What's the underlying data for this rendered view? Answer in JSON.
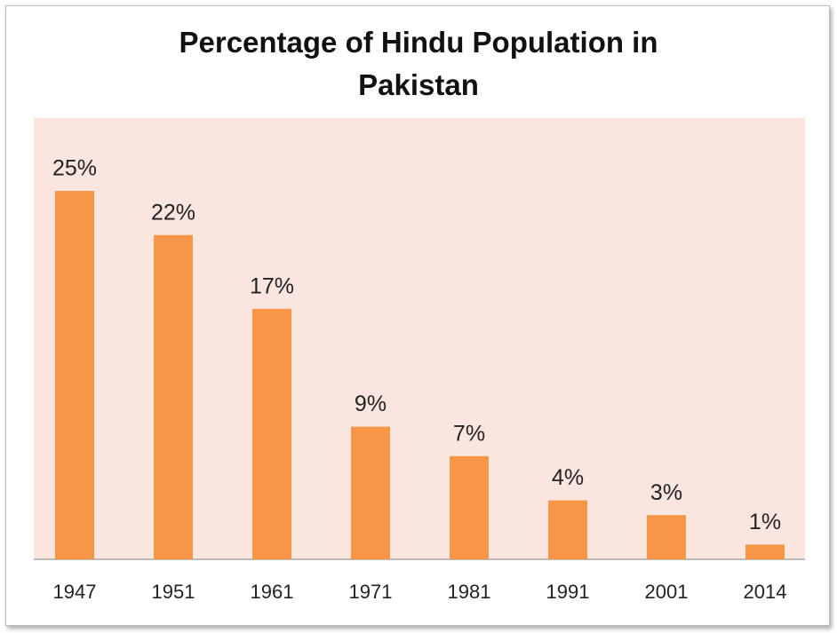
{
  "chart_data": {
    "type": "bar",
    "title": "Percentage of Hindu Population in Pakistan",
    "categories": [
      "1947",
      "1951",
      "1961",
      "1971",
      "1981",
      "1991",
      "2001",
      "2014"
    ],
    "values": [
      25,
      22,
      17,
      9,
      7,
      4,
      3,
      1
    ],
    "value_labels": [
      "25%",
      "22%",
      "17%",
      "9%",
      "7%",
      "4%",
      "3%",
      "1%"
    ],
    "color": "#f79646"
  }
}
